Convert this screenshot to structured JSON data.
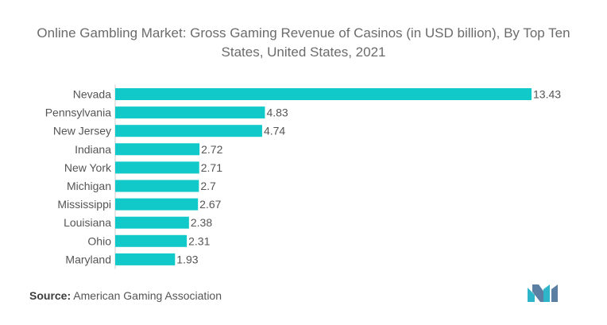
{
  "title": "Online Gambling Market: Gross Gaming Revenue of Casinos (in USD billion), By Top Ten States, United States, 2021",
  "source": {
    "label": "Source:",
    "text": "American Gaming Association"
  },
  "colors": {
    "bar": "#12c9c9",
    "text": "#555555",
    "axis": "#cfcfcf"
  },
  "logo": {
    "name": "mordor-intelligence-logo"
  },
  "chart_data": {
    "type": "bar",
    "orientation": "horizontal",
    "title": "Online Gambling Market: Gross Gaming Revenue of Casinos (in USD billion), By Top Ten States, United States, 2021",
    "categories": [
      "Nevada",
      "Pennsylvania",
      "New Jersey",
      "Indiana",
      "New York",
      "Michigan",
      "Mississippi",
      "Louisiana",
      "Ohio",
      "Maryland"
    ],
    "values": [
      13.43,
      4.83,
      4.74,
      2.72,
      2.71,
      2.7,
      2.67,
      2.38,
      2.31,
      1.93
    ],
    "data_labels": [
      "13.43",
      "4.83",
      "4.74",
      "2.72",
      "2.71",
      "2.7",
      "2.67",
      "2.38",
      "2.31",
      "1.93"
    ],
    "xlim": [
      0,
      13.43
    ],
    "xlabel": "",
    "ylabel": "",
    "grid": false,
    "legend": "none"
  }
}
